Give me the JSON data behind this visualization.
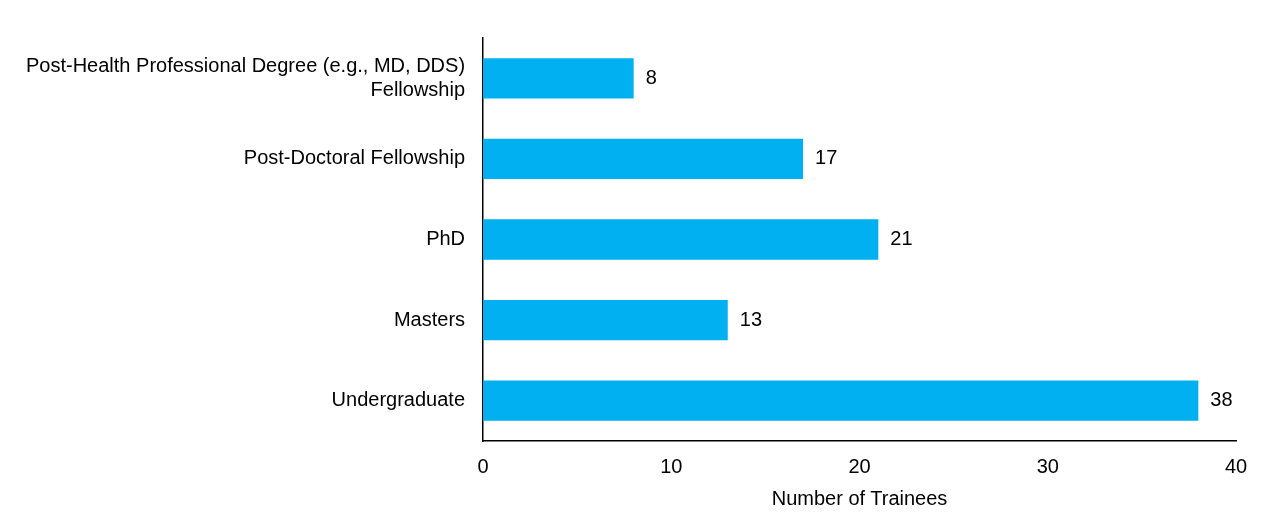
{
  "chart_data": {
    "type": "bar",
    "orientation": "horizontal",
    "xlabel": "Number of Trainees",
    "categories": [
      "Post-Health Professional Degree (e.g., MD, DDS) Fellowship",
      "Post-Doctoral Fellowship",
      "PhD",
      "Masters",
      "Undergraduate"
    ],
    "values": [
      8,
      17,
      21,
      13,
      38
    ],
    "color": "#00b0f0",
    "xlim": [
      0,
      40
    ],
    "xticks": [
      0,
      10,
      20,
      30,
      40
    ],
    "data_labels": true,
    "grid": false,
    "legend": false
  }
}
